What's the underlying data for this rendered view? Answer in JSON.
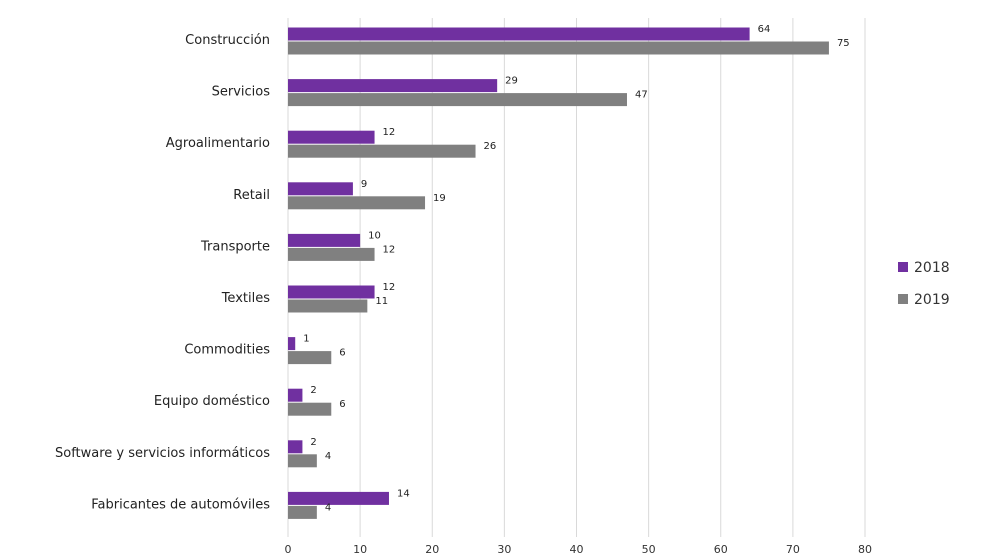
{
  "chart_data": {
    "type": "bar",
    "orientation": "horizontal",
    "categories": [
      "Construcción",
      "Servicios",
      "Agroalimentario",
      "Retail",
      "Transporte",
      "Textiles",
      "Commodities",
      "Equipo doméstico",
      "Software y servicios informáticos",
      "Fabricantes de automóviles"
    ],
    "series": [
      {
        "name": "2018",
        "color": "#7030a0",
        "values": [
          64,
          29,
          12,
          9,
          10,
          12,
          1,
          2,
          2,
          14
        ]
      },
      {
        "name": "2019",
        "color": "#808080",
        "values": [
          75,
          47,
          26,
          19,
          12,
          11,
          6,
          6,
          4,
          4
        ]
      }
    ],
    "xlim": [
      0,
      80
    ],
    "xticks": [
      0,
      10,
      20,
      30,
      40,
      50,
      60,
      70,
      80
    ],
    "grid": true,
    "legend_position": "right",
    "title": "",
    "xlabel": "",
    "ylabel": ""
  }
}
